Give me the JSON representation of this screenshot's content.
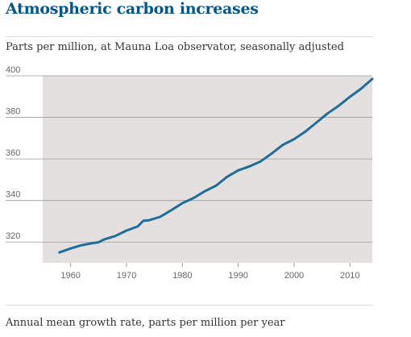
{
  "header": {
    "title": "Atmospheric carbon increases"
  },
  "footer": {
    "note": "Annual mean growth rate, parts per million per year"
  },
  "colors": {
    "line": "#1f6d9c",
    "plot_bg": "#e4e0dd",
    "grid": "#9a9a9a",
    "title": "#005689"
  },
  "chart_data": {
    "type": "line",
    "title": "Atmospheric carbon increases",
    "subtitle": "Parts per million, at Mauna Loa observator, seasonally adjusted",
    "xlabel": "",
    "ylabel": "",
    "xlim": [
      1955,
      2014
    ],
    "ylim": [
      310,
      400
    ],
    "grid": true,
    "x_ticks": [
      1960,
      1970,
      1980,
      1990,
      2000,
      2010
    ],
    "y_ticks": [
      320,
      340,
      360,
      380,
      400
    ],
    "series": [
      {
        "x": [
          1958,
          1960,
          1962,
          1964,
          1965,
          1966,
          1968,
          1970,
          1972,
          1973,
          1974,
          1976,
          1978,
          1980,
          1982,
          1984,
          1986,
          1988,
          1990,
          1992,
          1994,
          1996,
          1998,
          2000,
          2002,
          2004,
          2006,
          2008,
          2010,
          2012,
          2014
        ],
        "values": [
          315.0,
          316.9,
          318.5,
          319.5,
          319.9,
          321.3,
          322.9,
          325.5,
          327.5,
          330.2,
          330.5,
          332.1,
          335.3,
          338.7,
          341.2,
          344.4,
          347.1,
          351.4,
          354.5,
          356.4,
          358.8,
          362.6,
          366.8,
          369.5,
          373.1,
          377.5,
          381.9,
          385.6,
          389.9,
          393.8,
          398.5
        ]
      }
    ]
  }
}
